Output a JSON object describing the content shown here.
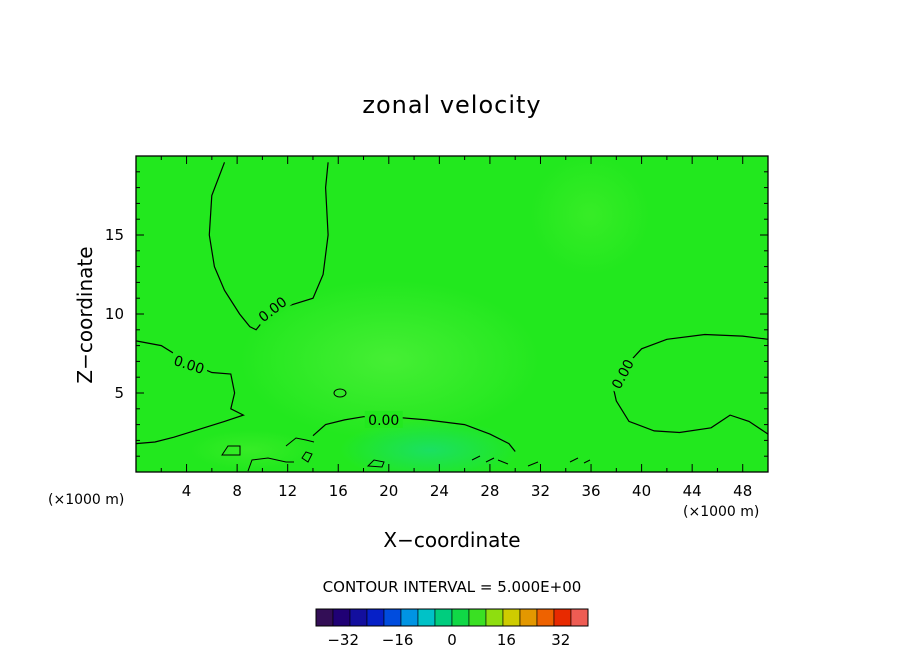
{
  "chart_data": {
    "type": "heatmap",
    "title": "zonal velocity",
    "xlabel": "X−coordinate",
    "ylabel": "Z−coordinate",
    "x_unit_left": "(×1000 m)",
    "x_unit_right": "(×1000 m)",
    "xlim": [
      0,
      50
    ],
    "ylim": [
      0,
      20
    ],
    "x_ticks": [
      4,
      8,
      12,
      16,
      20,
      24,
      28,
      32,
      36,
      40,
      44,
      48
    ],
    "x_tick_labels": [
      "4",
      "8",
      "12",
      "16",
      "20",
      "24",
      "28",
      "32",
      "36",
      "40",
      "44",
      "48"
    ],
    "y_ticks": [
      5,
      10,
      15
    ],
    "y_tick_labels": [
      "5",
      "10",
      "15"
    ],
    "contour_labels": [
      "0.00",
      "0.00",
      "0.00",
      "0.00"
    ],
    "contour_interval_text": "CONTOUR INTERVAL = 5.000E+00",
    "colorbar": {
      "min": -40,
      "max": 40,
      "interval": 5,
      "tick_values": [
        -32,
        -16,
        0,
        16,
        32
      ],
      "tick_labels": [
        "−32",
        "−16",
        "0",
        "16",
        "32"
      ]
    },
    "field_color": "#22e81e",
    "contours": [
      {
        "level": 0,
        "label": "0.00",
        "points": [
          [
            7,
            19.6
          ],
          [
            6,
            17.5
          ],
          [
            5.8,
            15
          ],
          [
            6.2,
            13
          ],
          [
            7,
            11.5
          ],
          [
            8.2,
            10
          ],
          [
            9,
            9.2
          ],
          [
            9.5,
            9
          ],
          [
            10.5,
            10
          ],
          [
            12,
            10.5
          ],
          [
            14,
            11
          ],
          [
            14.8,
            12.5
          ],
          [
            15.2,
            15
          ],
          [
            15,
            18
          ],
          [
            15.2,
            19.6
          ]
        ]
      },
      {
        "level": 0,
        "label": "0.00",
        "points": [
          [
            0,
            8.3
          ],
          [
            2,
            8
          ],
          [
            4,
            7
          ],
          [
            6,
            6.3
          ],
          [
            7.5,
            6.2
          ],
          [
            7.8,
            5
          ],
          [
            7.5,
            4
          ],
          [
            8.5,
            3.6
          ],
          [
            7,
            3.2
          ],
          [
            5,
            2.7
          ],
          [
            3,
            2.2
          ],
          [
            1.5,
            1.9
          ],
          [
            0,
            1.8
          ]
        ]
      },
      {
        "level": 0,
        "label": "0.00",
        "points": [
          [
            14,
            2.3
          ],
          [
            15,
            3
          ],
          [
            16.5,
            3.3
          ],
          [
            18,
            3.5
          ],
          [
            20,
            3.5
          ],
          [
            23,
            3.3
          ],
          [
            26,
            3
          ],
          [
            28,
            2.4
          ],
          [
            29.5,
            1.8
          ],
          [
            30,
            1.3
          ]
        ]
      },
      {
        "level": 0,
        "label": "0.00",
        "points": [
          [
            50,
            2.4
          ],
          [
            48.5,
            3.2
          ],
          [
            47,
            3.6
          ],
          [
            45.5,
            2.8
          ],
          [
            43,
            2.5
          ],
          [
            41,
            2.6
          ],
          [
            39,
            3.2
          ],
          [
            38,
            4.5
          ],
          [
            37.8,
            5.2
          ],
          [
            38.5,
            6.5
          ],
          [
            40,
            7.8
          ],
          [
            42,
            8.4
          ],
          [
            45,
            8.7
          ],
          [
            48,
            8.6
          ],
          [
            50,
            8.4
          ]
        ]
      }
    ]
  }
}
